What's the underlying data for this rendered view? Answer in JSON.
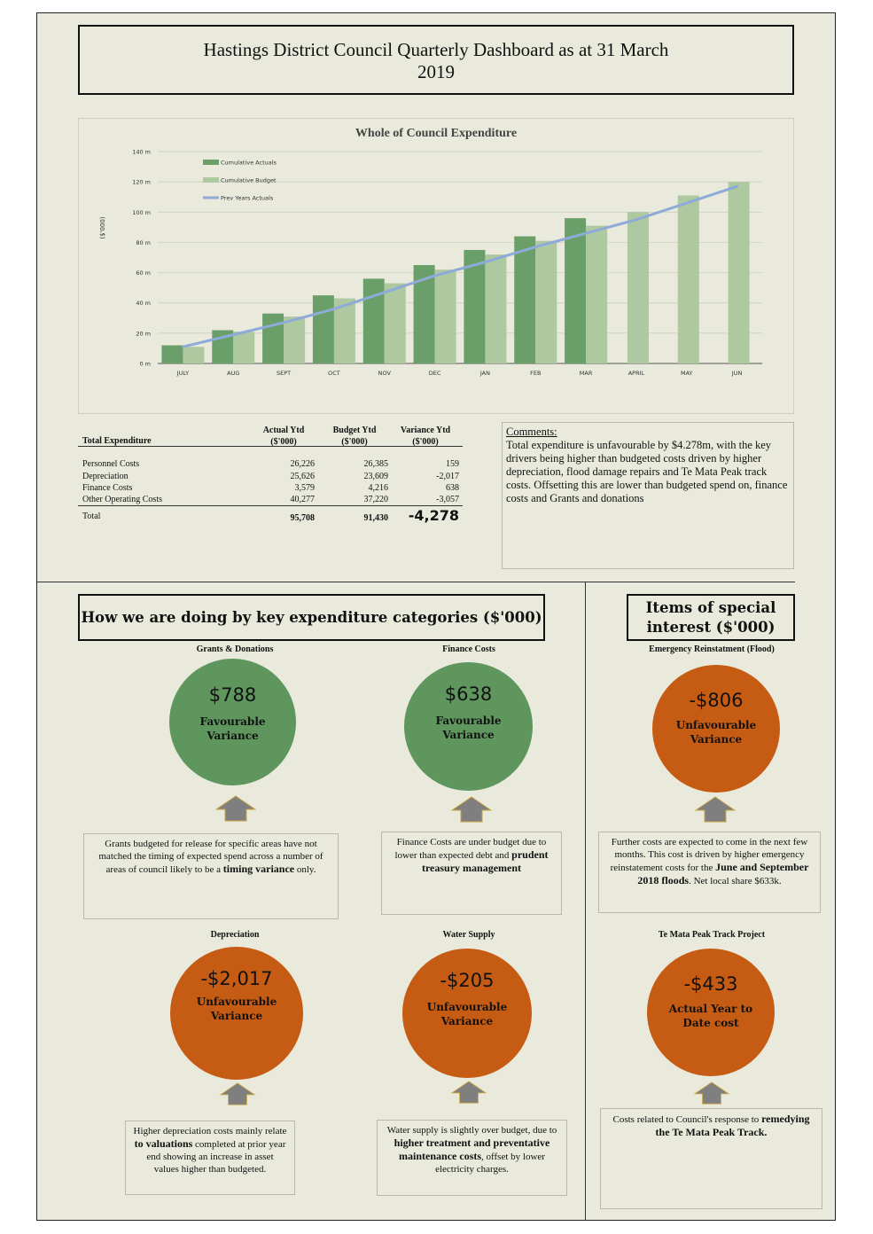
{
  "page_title": "Hastings District Council Quarterly Dashboard as at 31 March 2019",
  "chart_data": {
    "type": "bar",
    "title": "Whole of Council Expenditure",
    "ylabel": "($'000)",
    "ylim": [
      0,
      140
    ],
    "yticks": [
      "0 m",
      "20 m",
      "40 m",
      "60 m",
      "80 m",
      "100 m",
      "120 m",
      "140 m"
    ],
    "categories": [
      "JULY",
      "AUG",
      "SEPT",
      "OCT",
      "NOV",
      "DEC",
      "JAN",
      "FEB",
      "MAR",
      "APRIL",
      "MAY",
      "JUN"
    ],
    "series": [
      {
        "name": "Cumulative Actuals",
        "type": "bar",
        "color": "#6a9f6a",
        "values": [
          12,
          22,
          33,
          45,
          56,
          65,
          75,
          84,
          96,
          null,
          null,
          null
        ]
      },
      {
        "name": "Cumulative Budget",
        "type": "bar",
        "color": "#aec8a0",
        "values": [
          11,
          21,
          31,
          43,
          53,
          62,
          72,
          81,
          91,
          100,
          111,
          120
        ]
      },
      {
        "name": "Prev Years Actuals",
        "type": "line",
        "color": "#8eaad8",
        "values": [
          11,
          19,
          27,
          36,
          47,
          58,
          67,
          77,
          86,
          95,
          106,
          117
        ]
      }
    ],
    "legend_position": "top-left",
    "grid": "horizontal"
  },
  "table": {
    "title": "Total Expenditure",
    "headers": [
      [
        "Actual Ytd",
        "($'000)"
      ],
      [
        "Budget Ytd",
        "($'000)"
      ],
      [
        "Variance Ytd",
        "($'000)"
      ]
    ],
    "rows": [
      {
        "label": "Personnel Costs",
        "actual": "26,226",
        "budget": "26,385",
        "variance": "159"
      },
      {
        "label": "Depreciation",
        "actual": "25,626",
        "budget": "23,609",
        "variance": "-2,017"
      },
      {
        "label": "Finance Costs",
        "actual": "3,579",
        "budget": "4,216",
        "variance": "638"
      },
      {
        "label": "Other Operating Costs",
        "actual": "40,277",
        "budget": "37,220",
        "variance": "-3,057"
      }
    ],
    "total": {
      "label": "Total",
      "actual": "95,708",
      "budget": "91,430",
      "variance": "-4,278"
    }
  },
  "comments": {
    "heading": "Comments:",
    "text": "Total expenditure is unfavourable by $4.278m, with the key drivers being higher than budgeted costs driven by higher depreciation, flood damage repairs and  Te Mata Peak track costs.  Offsetting this are lower than budgeted spend on, finance costs and Grants and donations"
  },
  "section_left_title": "How we are doing by key expenditure categories ($'000)",
  "section_right_title": "Items of special interest ($'000)",
  "cards": {
    "grants": {
      "category": "Grants & Donations",
      "amount": "$788",
      "status": "Favourable Variance",
      "note_a": "Grants budgeted for release for specific areas have not matched the timing of expected spend across a number of areas of council likely to be a ",
      "note_b": "timing variance",
      "note_c": " only.",
      "color": "#5e965e"
    },
    "finance": {
      "category": "Finance Costs",
      "amount": "$638",
      "status": "Favourable Variance",
      "note_a": "Finance Costs are under budget due to lower than expected debt and ",
      "note_b": "prudent treasury management",
      "color": "#5e965e"
    },
    "flood": {
      "category": "Emergency Reinstatment (Flood)",
      "amount": "-$806",
      "status": "Unfavourable Variance",
      "note_a": "Further costs are expected to come in the  next few months. This cost is driven by higher emergency reinstatement costs for the ",
      "note_b": "June and September 2018 floods",
      "note_c": ". Net local share $633k.",
      "color": "#c65b13"
    },
    "depreciation": {
      "category": "Depreciation",
      "amount": "-$2,017",
      "status": "Unfavourable Variance",
      "note_a": "Higher depreciation costs mainly relate ",
      "note_b": "to valuations",
      "note_c": " completed at prior year end showing an increase in asset values higher than budgeted.",
      "color": "#c65b13"
    },
    "water": {
      "category": "Water Supply",
      "amount": "-$205",
      "status": "Unfavourable Variance",
      "note_a": "Water supply is slightly over budget, due to ",
      "note_b": "higher treatment and preventative maintenance costs",
      "note_c": ", offset by lower electricity charges.",
      "color": "#c65b13"
    },
    "temata": {
      "category": "Te Mata Peak Track Project",
      "amount": "-$433",
      "status": "Actual Year to Date cost",
      "note_a": "Costs related to Council's response to ",
      "note_b": "remedying the Te Mata Peak Track.",
      "color": "#c65b13"
    }
  }
}
